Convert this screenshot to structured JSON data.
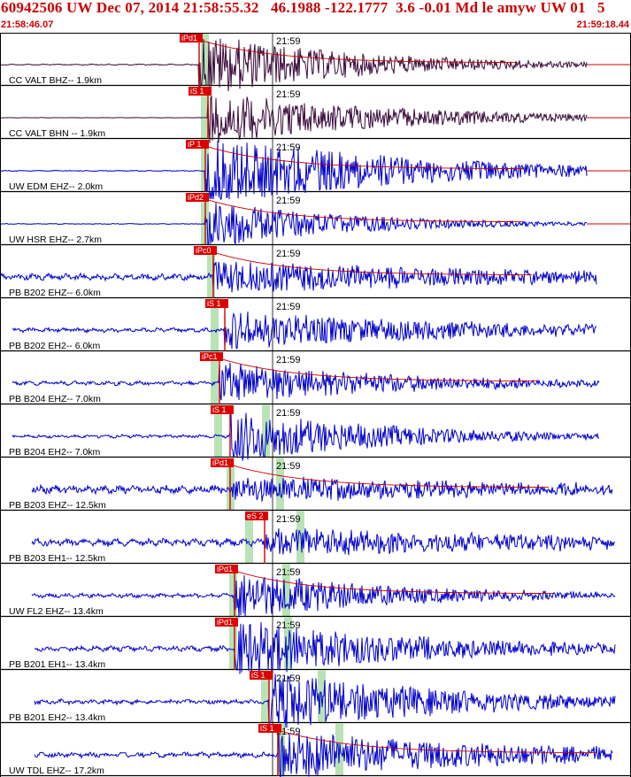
{
  "header": {
    "title": "60942506 UW Dec 07, 2014 21:58:55.32   46.1988 -122.1777  3.6 -0.01 Md le amyw UW 01   5",
    "time_start": "21:58:46.07",
    "time_end": "21:59:18.44",
    "minute_tick": "21:59"
  },
  "colors": {
    "accent_red": "#cc0000",
    "broadband_trace": "#3a0a3a",
    "short_period_trace": "#0000cc",
    "pick_window": "#b9e3b5",
    "coda_fit": "#cc0000"
  },
  "traces": [
    {
      "label": "CC VALT BHZ-- 1.9km",
      "pick": "iPd1",
      "color": "#3a0a3a",
      "amp": 1.4,
      "onset": 0.316,
      "noise": 0.08,
      "end": 0.93,
      "start": 0.0,
      "coda": true,
      "gp": 0.33,
      "decay": 0.25
    },
    {
      "label": "CC VALT BHN -- 1.9km",
      "pick": "iS 1",
      "color": "#3a0a3a",
      "amp": 1.15,
      "onset": 0.33,
      "noise": 0.02,
      "end": 0.93,
      "start": 0.0,
      "coda": false,
      "gp": 0.33,
      "decay": 0.3
    },
    {
      "label": "UW EDM EHZ-- 2.0km",
      "pick": "iP 1",
      "color": "#0000cc",
      "amp": 1.6,
      "onset": 0.326,
      "noise": 0.06,
      "end": 0.93,
      "start": 0.0,
      "coda": true,
      "gp": 0.33,
      "decay": 0.33
    },
    {
      "label": "UW HSR EHZ-- 2.7km",
      "pick": "iPd2",
      "color": "#0000cc",
      "amp": 1.1,
      "onset": 0.326,
      "noise": 0.06,
      "end": 0.93,
      "start": 0.0,
      "coda": true,
      "gp": 0.33,
      "decay": 0.22
    },
    {
      "label": "PB B202 EHZ-- 6.0km",
      "pick": "iPc0",
      "color": "#0000cc",
      "amp": 0.75,
      "onset": 0.338,
      "noise": 0.45,
      "end": 0.945,
      "start": 0.0,
      "coda": true,
      "gp": 0.34,
      "decay": 0.5
    },
    {
      "label": "PB B202 EH2-- 6.0km",
      "pick": "iS 1",
      "color": "#0000cc",
      "amp": 0.85,
      "onset": 0.356,
      "noise": 0.3,
      "end": 0.945,
      "start": 0.02,
      "coda": false,
      "gp": 0.345,
      "decay": 0.4
    },
    {
      "label": "PB B204 EHZ-- 7.0km",
      "pick": "iPc1",
      "color": "#0000cc",
      "amp": 0.9,
      "onset": 0.348,
      "noise": 0.28,
      "end": 0.95,
      "start": 0.02,
      "coda": true,
      "gp": 0.345,
      "decay": 0.3
    },
    {
      "label": "PB B204 EH2-- 7.0km",
      "pick": "iS 1",
      "color": "#0000cc",
      "amp": 1.2,
      "onset": 0.365,
      "noise": 0.22,
      "end": 0.95,
      "start": 0.02,
      "coda": false,
      "gp": 0.35,
      "decay": 0.25
    },
    {
      "label": "PB B203 EHZ-- 12.5km",
      "pick": "iPd1",
      "color": "#0000cc",
      "amp": 0.55,
      "onset": 0.365,
      "noise": 0.55,
      "end": 0.97,
      "start": 0.05,
      "coda": true,
      "gp": 0.37,
      "decay": 0.6
    },
    {
      "label": "PB B203 EH1-- 12.5km",
      "pick": "eS 2",
      "color": "#0000cc",
      "amp": 0.6,
      "onset": 0.42,
      "noise": 0.5,
      "end": 0.975,
      "start": 0.05,
      "coda": false,
      "gp": 0.4,
      "decay": 0.6
    },
    {
      "label": "UW FL2 EHZ-- 13.4km",
      "pick": "iPd1",
      "color": "#0000cc",
      "amp": 1.1,
      "onset": 0.372,
      "noise": 0.3,
      "end": 0.975,
      "start": 0.05,
      "coda": true,
      "gp": 0.375,
      "decay": 0.25
    },
    {
      "label": "PB B201 EH1-- 13.4km",
      "pick": "iPd1",
      "color": "#0000cc",
      "amp": 1.3,
      "onset": 0.372,
      "noise": 0.35,
      "end": 0.975,
      "start": 0.055,
      "coda": false,
      "gp": 0.375,
      "decay": 0.3
    },
    {
      "label": "PB B201 EH2-- 13.4km",
      "pick": "iS 1",
      "color": "#0000cc",
      "amp": 1.3,
      "onset": 0.426,
      "noise": 0.32,
      "end": 0.975,
      "start": 0.055,
      "coda": false,
      "gp": 0.425,
      "decay": 0.3
    },
    {
      "label": "UW TDL EHZ-- 17.2km",
      "pick": "iS 1",
      "color": "#0000cc",
      "amp": 1.1,
      "onset": 0.44,
      "noise": 0.35,
      "end": 0.97,
      "start": 0.055,
      "coda": true,
      "gp": 0.45,
      "decay": 0.4
    }
  ]
}
